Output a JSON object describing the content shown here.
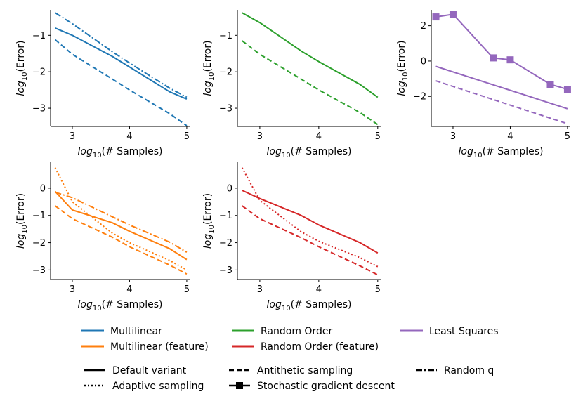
{
  "chart_data": [
    {
      "type": "line",
      "xlabel_base": "log",
      "xlabel_sub": "10",
      "xlabel_rest": "(# Samples)",
      "ylabel_base": "log",
      "ylabel_sub": "10",
      "ylabel_rest": "(Error)",
      "xlim": [
        2.62,
        5.05
      ],
      "ylim": [
        -3.5,
        -0.3
      ],
      "xticks": [
        3,
        4,
        5
      ],
      "yticks": [
        -3,
        -2,
        -1
      ],
      "series": [
        {
          "method": "Multilinear",
          "variant": "Default variant",
          "color": "#1f77b4",
          "dash": "solid",
          "x": [
            2.7,
            3.0,
            3.7,
            4.0,
            4.7,
            5.0
          ],
          "y": [
            -0.8,
            -1.0,
            -1.58,
            -1.87,
            -2.55,
            -2.75
          ]
        },
        {
          "method": "Multilinear",
          "variant": "Antithetic sampling",
          "color": "#1f77b4",
          "dash": "dashed",
          "x": [
            2.7,
            3.0,
            3.7,
            4.0,
            4.7,
            5.0
          ],
          "y": [
            -1.12,
            -1.52,
            -2.2,
            -2.5,
            -3.15,
            -3.48
          ]
        },
        {
          "method": "Multilinear",
          "variant": "Random q",
          "color": "#1f77b4",
          "dash": "dashdot",
          "x": [
            2.7,
            3.0,
            3.7,
            4.0,
            4.7,
            5.0
          ],
          "y": [
            -0.38,
            -0.68,
            -1.45,
            -1.76,
            -2.45,
            -2.7
          ]
        }
      ]
    },
    {
      "type": "line",
      "xlabel_base": "log",
      "xlabel_sub": "10",
      "xlabel_rest": "(# Samples)",
      "ylabel_base": "log",
      "ylabel_sub": "10",
      "ylabel_rest": "(Error)",
      "xlim": [
        2.62,
        5.05
      ],
      "ylim": [
        -3.5,
        -0.3
      ],
      "xticks": [
        3,
        4,
        5
      ],
      "yticks": [
        -3,
        -2,
        -1
      ],
      "series": [
        {
          "method": "Random Order",
          "variant": "Default variant",
          "color": "#2ca02c",
          "dash": "solid",
          "x": [
            2.7,
            3.0,
            3.7,
            4.0,
            4.7,
            5.0
          ],
          "y": [
            -0.38,
            -0.65,
            -1.43,
            -1.72,
            -2.35,
            -2.7
          ]
        },
        {
          "method": "Random Order",
          "variant": "Antithetic sampling",
          "color": "#2ca02c",
          "dash": "dashed",
          "x": [
            2.7,
            3.0,
            3.7,
            4.0,
            4.7,
            5.0
          ],
          "y": [
            -1.15,
            -1.52,
            -2.2,
            -2.5,
            -3.12,
            -3.45
          ]
        }
      ]
    },
    {
      "type": "line",
      "xlabel_base": "log",
      "xlabel_sub": "10",
      "xlabel_rest": "(# Samples)",
      "ylabel_base": "log",
      "ylabel_sub": "10",
      "ylabel_rest": "(Error)",
      "xlim": [
        2.62,
        5.05
      ],
      "ylim": [
        -3.7,
        2.9
      ],
      "xticks": [
        3,
        4,
        5
      ],
      "yticks": [
        -2,
        0,
        2
      ],
      "series": [
        {
          "method": "Least Squares",
          "variant": "Stochastic gradient descent",
          "color": "#9467bd",
          "dash": "solid",
          "marker": "square",
          "x": [
            2.7,
            3.0,
            3.7,
            4.0,
            4.7,
            5.0
          ],
          "y": [
            2.5,
            2.65,
            0.18,
            0.07,
            -1.32,
            -1.6
          ]
        },
        {
          "method": "Least Squares",
          "variant": "Default variant",
          "color": "#9467bd",
          "dash": "solid",
          "x": [
            2.7,
            5.0
          ],
          "y": [
            -0.3,
            -2.7
          ]
        },
        {
          "method": "Least Squares",
          "variant": "Antithetic sampling",
          "color": "#9467bd",
          "dash": "dashed",
          "x": [
            2.7,
            5.0
          ],
          "y": [
            -1.12,
            -3.55
          ]
        }
      ]
    },
    {
      "type": "line",
      "xlabel_base": "log",
      "xlabel_sub": "10",
      "xlabel_rest": "(# Samples)",
      "ylabel_base": "log",
      "ylabel_sub": "10",
      "ylabel_rest": "(Error)",
      "xlim": [
        2.62,
        5.05
      ],
      "ylim": [
        -3.35,
        0.95
      ],
      "xticks": [
        3,
        4,
        5
      ],
      "yticks": [
        -3,
        -2,
        -1,
        0
      ],
      "series": [
        {
          "method": "Multilinear (feature)",
          "variant": "Default variant",
          "color": "#ff7f0e",
          "dash": "solid",
          "x": [
            2.7,
            3.0,
            3.7,
            4.0,
            4.7,
            5.0
          ],
          "y": [
            -0.12,
            -0.8,
            -1.27,
            -1.58,
            -2.22,
            -2.62
          ]
        },
        {
          "method": "Multilinear (feature)",
          "variant": "Antithetic sampling",
          "color": "#ff7f0e",
          "dash": "dashed",
          "x": [
            2.7,
            3.0,
            3.7,
            4.0,
            4.7,
            5.0
          ],
          "y": [
            -0.65,
            -1.12,
            -1.8,
            -2.15,
            -2.82,
            -3.15
          ]
        },
        {
          "method": "Multilinear (feature)",
          "variant": "Random q",
          "color": "#ff7f0e",
          "dash": "dashdot",
          "x": [
            2.7,
            3.0,
            3.7,
            4.0,
            4.7,
            5.0
          ],
          "y": [
            -0.15,
            -0.35,
            -1.05,
            -1.35,
            -1.98,
            -2.35
          ]
        },
        {
          "method": "Multilinear (feature)",
          "variant": "Adaptive sampling",
          "color": "#ff7f0e",
          "dash": "dotted",
          "x": [
            2.7,
            3.0,
            3.7,
            4.0,
            4.7,
            5.0
          ],
          "y": [
            0.75,
            -0.5,
            -1.65,
            -2.0,
            -2.65,
            -3.0
          ]
        }
      ]
    },
    {
      "type": "line",
      "xlabel_base": "log",
      "xlabel_sub": "10",
      "xlabel_rest": "(# Samples)",
      "ylabel_base": "log",
      "ylabel_sub": "10",
      "ylabel_rest": "(Error)",
      "xlim": [
        2.62,
        5.05
      ],
      "ylim": [
        -3.35,
        0.95
      ],
      "xticks": [
        3,
        4,
        5
      ],
      "yticks": [
        -3,
        -2,
        -1,
        0
      ],
      "series": [
        {
          "method": "Random Order (feature)",
          "variant": "Default variant",
          "color": "#d62728",
          "dash": "solid",
          "x": [
            2.7,
            3.0,
            3.7,
            4.0,
            4.7,
            5.0
          ],
          "y": [
            -0.08,
            -0.38,
            -1.0,
            -1.35,
            -2.0,
            -2.38
          ]
        },
        {
          "method": "Random Order (feature)",
          "variant": "Antithetic sampling",
          "color": "#d62728",
          "dash": "dashed",
          "x": [
            2.7,
            3.0,
            3.7,
            4.0,
            4.7,
            5.0
          ],
          "y": [
            -0.65,
            -1.12,
            -1.82,
            -2.15,
            -2.85,
            -3.18
          ]
        },
        {
          "method": "Random Order (feature)",
          "variant": "Adaptive sampling",
          "color": "#d62728",
          "dash": "dotted",
          "x": [
            2.7,
            3.0,
            3.7,
            4.0,
            4.7,
            5.0
          ],
          "y": [
            0.75,
            -0.45,
            -1.6,
            -1.95,
            -2.55,
            -2.88
          ]
        }
      ]
    }
  ],
  "legend_methods": [
    {
      "label": "Multilinear",
      "color": "#1f77b4"
    },
    {
      "label": "Random Order",
      "color": "#2ca02c"
    },
    {
      "label": "Least Squares",
      "color": "#9467bd"
    },
    {
      "label": "Multilinear (feature)",
      "color": "#ff7f0e"
    },
    {
      "label": "Random Order (feature)",
      "color": "#d62728"
    }
  ],
  "legend_variants": [
    {
      "label": "Default variant",
      "dash": "solid"
    },
    {
      "label": "Antithetic sampling",
      "dash": "dashed"
    },
    {
      "label": "Random q",
      "dash": "dashdot"
    },
    {
      "label": "Adaptive sampling",
      "dash": "dotted"
    },
    {
      "label": "Stochastic gradient descent",
      "dash": "solid",
      "marker": "square"
    }
  ]
}
